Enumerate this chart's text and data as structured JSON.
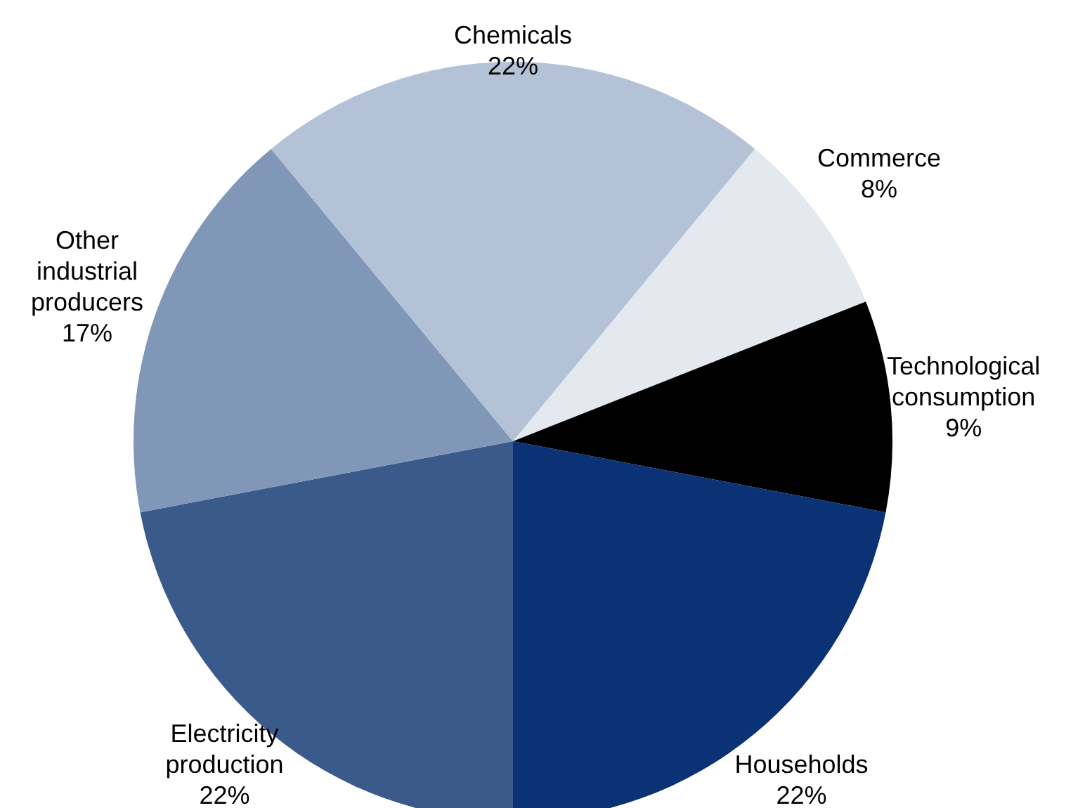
{
  "chart_data": {
    "type": "pie",
    "categories": [
      "Commerce",
      "Technological consumption",
      "Households",
      "Electricity production",
      "Other industrial producers",
      "Chemicals"
    ],
    "values": [
      8,
      9,
      22,
      22,
      17,
      22
    ],
    "colors": [
      "#e4e9f0",
      "#000000",
      "#0a3275",
      "#3a5a8c",
      "#8097b8",
      "#b3c2d6"
    ],
    "value_labels": [
      "8%",
      "9%",
      "22%",
      "22%",
      "17%",
      "22%"
    ]
  }
}
